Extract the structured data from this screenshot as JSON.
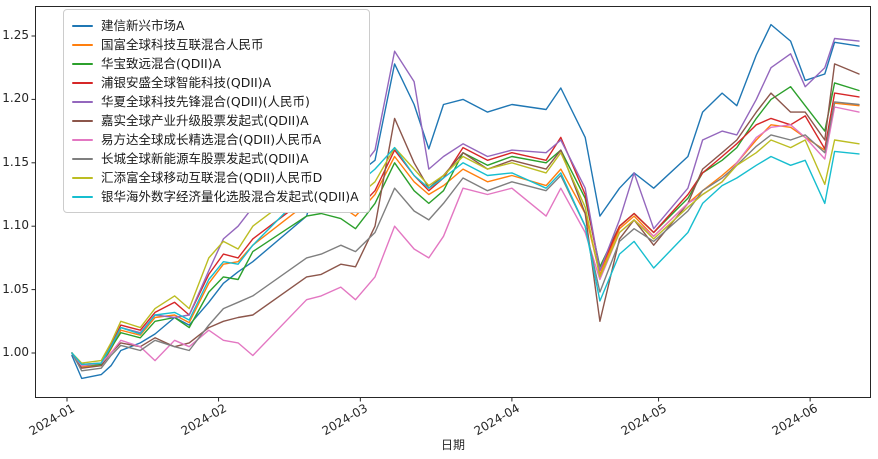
{
  "chart_data": {
    "type": "line",
    "xlabel": "日期",
    "grid": false,
    "legend_position": "upper left",
    "ylim": [
      0.953,
      1.274
    ],
    "xticks": [
      "2024-01",
      "2024-02",
      "2024-03",
      "2024-04",
      "2024-05",
      "2024-06"
    ],
    "yticks": [
      "1.00",
      "1.05",
      "1.10",
      "1.15",
      "1.20",
      "1.25"
    ],
    "x_dates": [
      "2024-01-02",
      "2024-01-04",
      "2024-01-08",
      "2024-01-10",
      "2024-01-12",
      "2024-01-16",
      "2024-01-19",
      "2024-01-23",
      "2024-01-26",
      "2024-01-30",
      "2024-02-02",
      "2024-02-05",
      "2024-02-08",
      "2024-02-19",
      "2024-02-22",
      "2024-02-26",
      "2024-02-29",
      "2024-03-04",
      "2024-03-08",
      "2024-03-12",
      "2024-03-15",
      "2024-03-18",
      "2024-03-22",
      "2024-03-27",
      "2024-04-01",
      "2024-04-08",
      "2024-04-11",
      "2024-04-16",
      "2024-04-19",
      "2024-04-23",
      "2024-04-26",
      "2024-04-30",
      "2024-05-07",
      "2024-05-10",
      "2024-05-14",
      "2024-05-17",
      "2024-05-21",
      "2024-05-24",
      "2024-05-28",
      "2024-05-31",
      "2024-06-04",
      "2024-06-06",
      "2024-06-11"
    ],
    "series": [
      {
        "name": "建信新兴市场A",
        "color": "#1f77b4",
        "values": [
          0.998,
          0.98,
          0.983,
          0.99,
          1.002,
          1.008,
          1.015,
          1.028,
          1.022,
          1.04,
          1.055,
          1.064,
          1.072,
          1.108,
          1.148,
          1.156,
          1.14,
          1.152,
          1.228,
          1.196,
          1.161,
          1.196,
          1.2,
          1.19,
          1.196,
          1.192,
          1.209,
          1.17,
          1.108,
          1.13,
          1.142,
          1.13,
          1.155,
          1.19,
          1.205,
          1.195,
          1.235,
          1.259,
          1.246,
          1.215,
          1.22,
          1.245,
          1.242
        ]
      },
      {
        "name": "国富全球科技互联混合人民币",
        "color": "#ff7f0e",
        "values": [
          1.0,
          0.989,
          0.99,
          1.003,
          1.018,
          1.014,
          1.028,
          1.03,
          1.024,
          1.055,
          1.07,
          1.072,
          1.085,
          1.118,
          1.12,
          1.116,
          1.108,
          1.125,
          1.155,
          1.135,
          1.125,
          1.132,
          1.145,
          1.135,
          1.14,
          1.132,
          1.145,
          1.11,
          1.062,
          1.098,
          1.108,
          1.092,
          1.118,
          1.128,
          1.14,
          1.15,
          1.168,
          1.18,
          1.178,
          1.17,
          1.16,
          1.197,
          1.195
        ]
      },
      {
        "name": "华宝致远混合(QDII)A",
        "color": "#2ca02c",
        "values": [
          1.0,
          0.99,
          0.991,
          1.004,
          1.016,
          1.012,
          1.025,
          1.028,
          1.02,
          1.048,
          1.06,
          1.058,
          1.08,
          1.108,
          1.11,
          1.106,
          1.098,
          1.118,
          1.15,
          1.128,
          1.118,
          1.128,
          1.158,
          1.148,
          1.155,
          1.15,
          1.16,
          1.122,
          1.068,
          1.1,
          1.11,
          1.095,
          1.122,
          1.142,
          1.152,
          1.162,
          1.185,
          1.2,
          1.21,
          1.195,
          1.175,
          1.213,
          1.207
        ]
      },
      {
        "name": "浦银安盛全球智能科技(QDII)A",
        "color": "#d62728",
        "values": [
          1.0,
          0.991,
          0.992,
          1.006,
          1.022,
          1.018,
          1.032,
          1.04,
          1.03,
          1.062,
          1.078,
          1.075,
          1.09,
          1.122,
          1.125,
          1.12,
          1.112,
          1.128,
          1.16,
          1.14,
          1.128,
          1.138,
          1.162,
          1.152,
          1.158,
          1.152,
          1.17,
          1.125,
          1.065,
          1.1,
          1.11,
          1.095,
          1.125,
          1.142,
          1.155,
          1.165,
          1.18,
          1.185,
          1.18,
          1.187,
          1.161,
          1.205,
          1.202
        ]
      },
      {
        "name": "华夏全球科技先锋混合(QDII)(人民币)",
        "color": "#9467bd",
        "values": [
          1.0,
          0.99,
          0.992,
          1.005,
          1.02,
          1.016,
          1.03,
          1.028,
          1.03,
          1.065,
          1.09,
          1.1,
          1.115,
          1.15,
          1.152,
          1.148,
          1.14,
          1.16,
          1.238,
          1.214,
          1.145,
          1.155,
          1.165,
          1.155,
          1.16,
          1.158,
          1.168,
          1.13,
          1.065,
          1.105,
          1.142,
          1.098,
          1.13,
          1.168,
          1.175,
          1.172,
          1.2,
          1.225,
          1.236,
          1.21,
          1.225,
          1.248,
          1.246
        ]
      },
      {
        "name": "嘉实全球产业升级股票发起式(QDII)A",
        "color": "#8c564b",
        "values": [
          1.0,
          0.988,
          0.99,
          1.0,
          1.008,
          1.005,
          1.012,
          1.005,
          1.008,
          1.02,
          1.025,
          1.028,
          1.03,
          1.06,
          1.062,
          1.07,
          1.068,
          1.1,
          1.185,
          1.15,
          1.13,
          1.14,
          1.158,
          1.145,
          1.152,
          1.145,
          1.16,
          1.11,
          1.025,
          1.09,
          1.105,
          1.085,
          1.118,
          1.145,
          1.158,
          1.168,
          1.19,
          1.205,
          1.19,
          1.19,
          1.168,
          1.228,
          1.22
        ]
      },
      {
        "name": "易方达全球成长精选混合(QDII)人民币A",
        "color": "#e377c2",
        "values": [
          1.0,
          0.99,
          0.992,
          1.0,
          1.01,
          1.005,
          0.994,
          1.01,
          1.005,
          1.018,
          1.01,
          1.008,
          0.998,
          1.042,
          1.045,
          1.052,
          1.042,
          1.06,
          1.1,
          1.082,
          1.075,
          1.092,
          1.13,
          1.125,
          1.13,
          1.108,
          1.13,
          1.095,
          1.058,
          1.095,
          1.105,
          1.092,
          1.118,
          1.125,
          1.135,
          1.15,
          1.17,
          1.178,
          1.18,
          1.17,
          1.153,
          1.194,
          1.19
        ]
      },
      {
        "name": "长城全球新能源车股票发起式(QDII)A",
        "color": "#7f7f7f",
        "values": [
          1.0,
          0.986,
          0.988,
          0.998,
          1.006,
          1.002,
          1.01,
          1.005,
          1.002,
          1.022,
          1.035,
          1.04,
          1.045,
          1.075,
          1.078,
          1.085,
          1.08,
          1.095,
          1.13,
          1.112,
          1.105,
          1.118,
          1.138,
          1.128,
          1.135,
          1.128,
          1.14,
          1.1,
          1.048,
          1.088,
          1.098,
          1.088,
          1.112,
          1.128,
          1.138,
          1.148,
          1.163,
          1.172,
          1.168,
          1.172,
          1.158,
          1.198,
          1.196
        ]
      },
      {
        "name": "汇添富全球移动互联混合(QDII)人民币D",
        "color": "#bcbd22",
        "values": [
          1.0,
          0.992,
          0.994,
          1.008,
          1.025,
          1.02,
          1.035,
          1.045,
          1.035,
          1.075,
          1.088,
          1.082,
          1.1,
          1.132,
          1.135,
          1.13,
          1.122,
          1.135,
          1.162,
          1.145,
          1.132,
          1.14,
          1.155,
          1.145,
          1.15,
          1.142,
          1.158,
          1.115,
          1.06,
          1.095,
          1.105,
          1.09,
          1.115,
          1.125,
          1.135,
          1.148,
          1.158,
          1.168,
          1.162,
          1.168,
          1.133,
          1.168,
          1.165
        ]
      },
      {
        "name": "银华海外数字经济量化选股混合发起式(QDII)A",
        "color": "#17becf",
        "values": [
          1.0,
          0.991,
          0.992,
          1.005,
          1.02,
          1.015,
          1.03,
          1.032,
          1.026,
          1.058,
          1.072,
          1.07,
          1.085,
          1.128,
          1.14,
          1.142,
          1.132,
          1.145,
          1.162,
          1.14,
          1.13,
          1.138,
          1.15,
          1.14,
          1.142,
          1.13,
          1.142,
          1.1,
          1.041,
          1.078,
          1.088,
          1.067,
          1.095,
          1.118,
          1.132,
          1.138,
          1.148,
          1.155,
          1.148,
          1.152,
          1.118,
          1.159,
          1.157
        ]
      }
    ]
  }
}
